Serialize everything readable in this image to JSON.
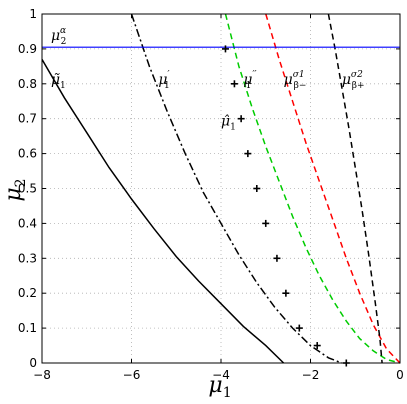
{
  "chart_data": {
    "type": "line",
    "title": "",
    "xlabel": "μ",
    "xlabel_sub": "1",
    "ylabel": "μ",
    "ylabel_sub": "2",
    "xlim": [
      -8,
      0
    ],
    "ylim": [
      0,
      1
    ],
    "grid": true,
    "x_ticks": [
      -8,
      -6,
      -4,
      -2,
      0
    ],
    "y_ticks": [
      0,
      0.1,
      0.2,
      0.3,
      0.4,
      0.5,
      0.6,
      0.7,
      0.8,
      0.9,
      1
    ],
    "x_tick_labels": [
      "−8",
      "−6",
      "−4",
      "−2",
      "0"
    ],
    "y_tick_labels": [
      "0",
      "0.1",
      "0.2",
      "0.3",
      "0.4",
      "0.5",
      "0.6",
      "0.7",
      "0.8",
      "0.9",
      "1"
    ],
    "series": [
      {
        "style": "solid",
        "color": "#000000",
        "annotation": "tilde_mu1",
        "x": [
          -8.0,
          -7.5,
          -7.0,
          -6.5,
          -6.0,
          -5.5,
          -5.0,
          -4.5,
          -4.0,
          -3.5,
          -3.0,
          -2.6
        ],
        "y": [
          0.87,
          0.76,
          0.66,
          0.56,
          0.47,
          0.385,
          0.305,
          0.235,
          0.17,
          0.105,
          0.05,
          0.0
        ]
      },
      {
        "style": "dashdot",
        "color": "#000000",
        "annotation": "mu1_prime",
        "x": [
          -6.0,
          -5.6,
          -5.2,
          -4.8,
          -4.4,
          -4.0,
          -3.6,
          -3.2,
          -2.8,
          -2.4,
          -2.0,
          -1.6,
          -1.3
        ],
        "y": [
          1.0,
          0.85,
          0.72,
          0.6,
          0.49,
          0.4,
          0.31,
          0.23,
          0.16,
          0.1,
          0.05,
          0.015,
          0.0
        ]
      },
      {
        "style": "dashed",
        "color": "#00cc00",
        "annotation": "mu1_doubleprime",
        "x": [
          -3.9,
          -3.6,
          -3.3,
          -3.0,
          -2.7,
          -2.4,
          -2.1,
          -1.8,
          -1.5,
          -1.2,
          -0.9,
          -0.6,
          -0.3,
          0.0
        ],
        "y": [
          1.0,
          0.85,
          0.73,
          0.62,
          0.52,
          0.42,
          0.33,
          0.25,
          0.18,
          0.12,
          0.07,
          0.035,
          0.01,
          0.0
        ]
      },
      {
        "style": "dashed",
        "color": "#ff0000",
        "annotation": "mu_beta_minus",
        "x": [
          -3.0,
          -2.7,
          -2.4,
          -2.1,
          -1.8,
          -1.5,
          -1.2,
          -0.9,
          -0.6,
          -0.3,
          0.0
        ],
        "y": [
          1.0,
          0.87,
          0.75,
          0.63,
          0.52,
          0.41,
          0.3,
          0.2,
          0.11,
          0.04,
          0.0
        ]
      },
      {
        "style": "dashed",
        "color": "#000000",
        "annotation": "mu_beta_plus",
        "x": [
          -1.6,
          -1.45,
          -1.3,
          -1.15,
          -1.0,
          -0.85,
          -0.7,
          -0.55,
          -0.45,
          -0.4
        ],
        "y": [
          1.0,
          0.9,
          0.79,
          0.68,
          0.56,
          0.44,
          0.31,
          0.17,
          0.07,
          0.0
        ]
      },
      {
        "style": "markers",
        "marker": "+",
        "color": "#000000",
        "annotation": "hat_mu1",
        "x": [
          -3.9,
          -3.7,
          -3.55,
          -3.4,
          -3.2,
          -3.0,
          -2.75,
          -2.55,
          -2.25,
          -1.85,
          -1.2
        ],
        "y": [
          0.9,
          0.8,
          0.7,
          0.6,
          0.5,
          0.4,
          0.3,
          0.2,
          0.1,
          0.05,
          0.0
        ]
      },
      {
        "style": "solid",
        "color": "#0000ff",
        "annotation": "mu2_alpha",
        "x": [
          -8,
          0
        ],
        "y": [
          0.905,
          0.905
        ]
      }
    ],
    "annotations": {
      "mu2_alpha": {
        "base": "μ",
        "sub": "2",
        "sup": "α",
        "x": -7.8,
        "y": 0.925
      },
      "tilde_mu1": {
        "base": "μ̃",
        "sub": "1",
        "sup": "",
        "x": -7.8,
        "y": 0.8
      },
      "mu1_prime": {
        "base": "μ",
        "sub": "1",
        "sup": "′",
        "x": -5.4,
        "y": 0.8
      },
      "mu1_doubleprime": {
        "base": "μ",
        "sub": "1",
        "sup": "′′",
        "x": -3.5,
        "y": 0.8
      },
      "mu_beta_minus": {
        "base": "μ",
        "sub": "β−",
        "sup": "σ1",
        "x": -2.6,
        "y": 0.8
      },
      "mu_beta_plus": {
        "base": "μ",
        "sub": "β+",
        "sup": "σ2",
        "x": -1.3,
        "y": 0.8
      },
      "hat_mu1": {
        "base": "μ̂",
        "sub": "1",
        "sup": "",
        "x": -4.0,
        "y": 0.68
      }
    }
  }
}
